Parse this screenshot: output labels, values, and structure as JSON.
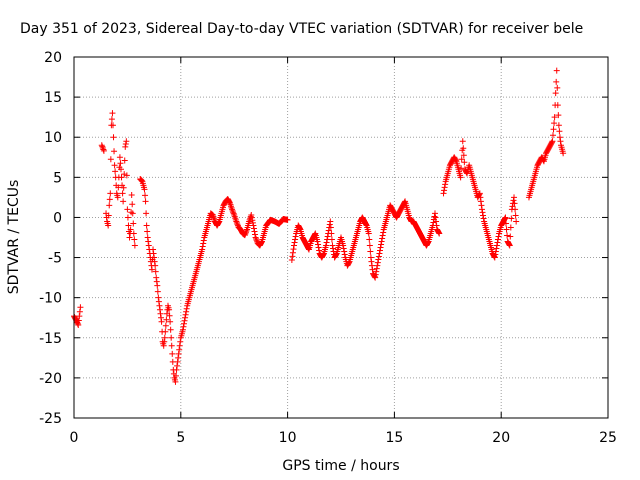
{
  "chart_data": {
    "type": "scatter",
    "title": "Day 351 of 2023, Sidereal Day-to-day VTEC variation (SDTVAR) for receiver bele",
    "xlabel": "GPS time / hours",
    "ylabel": "SDTVAR / TECUs",
    "xlim": [
      0,
      25
    ],
    "ylim": [
      -25,
      20
    ],
    "x_ticks": [
      "0",
      "5",
      "10",
      "15",
      "20",
      "25"
    ],
    "y_ticks": [
      "20",
      "15",
      "10",
      "5",
      "0",
      "-5",
      "-10",
      "-15",
      "-20",
      "-25"
    ],
    "grid": true,
    "marker": "+",
    "color": "#ff0000",
    "series": [
      {
        "name": "SDTVAR",
        "segments": [
          [
            [
              0.0,
              -12.3
            ],
            [
              0.1,
              -12.8
            ],
            [
              0.2,
              -13.4
            ],
            [
              0.3,
              -11.2
            ]
          ],
          [
            [
              1.3,
              9.0
            ],
            [
              1.4,
              8.3
            ]
          ],
          [
            [
              1.5,
              0.5
            ],
            [
              1.55,
              -0.5
            ],
            [
              1.6,
              -1.0
            ],
            [
              1.65,
              1.5
            ],
            [
              1.7,
              3.0
            ],
            [
              1.75,
              11.5
            ],
            [
              1.8,
              13.0
            ],
            [
              1.85,
              10.0
            ],
            [
              1.9,
              6.5
            ],
            [
              1.95,
              5.0
            ],
            [
              2.0,
              3.0
            ],
            [
              2.05,
              2.5
            ],
            [
              2.1,
              5.0
            ],
            [
              2.15,
              7.5
            ],
            [
              2.2,
              6.0
            ],
            [
              2.25,
              4.0
            ],
            [
              2.3,
              2.0
            ],
            [
              2.4,
              8.8
            ],
            [
              2.45,
              9.5
            ],
            [
              2.5,
              1.0
            ],
            [
              2.55,
              -1.0
            ],
            [
              2.6,
              -2.5
            ],
            [
              2.65,
              -1.5
            ],
            [
              2.7,
              2.8
            ],
            [
              2.75,
              0.5
            ],
            [
              2.8,
              -2.0
            ],
            [
              2.85,
              -3.5
            ]
          ],
          [
            [
              3.1,
              4.8
            ],
            [
              3.2,
              4.5
            ],
            [
              3.3,
              3.5
            ],
            [
              3.35,
              2.0
            ],
            [
              3.4,
              -1.0
            ],
            [
              3.45,
              -2.5
            ],
            [
              3.5,
              -3.5
            ],
            [
              3.55,
              -4.5
            ],
            [
              3.6,
              -5.5
            ],
            [
              3.65,
              -6.5
            ],
            [
              3.7,
              -4.0
            ],
            [
              3.75,
              -5.0
            ],
            [
              3.8,
              -6.0
            ],
            [
              3.85,
              -7.5
            ],
            [
              3.9,
              -8.5
            ],
            [
              3.95,
              -10.0
            ],
            [
              4.0,
              -11.0
            ],
            [
              4.05,
              -12.0
            ],
            [
              4.1,
              -13.0
            ],
            [
              4.15,
              -15.5
            ],
            [
              4.2,
              -16.0
            ],
            [
              4.25,
              -15.0
            ],
            [
              4.3,
              -13.5
            ],
            [
              4.35,
              -12.0
            ],
            [
              4.4,
              -11.0
            ],
            [
              4.45,
              -11.5
            ],
            [
              4.5,
              -13.0
            ],
            [
              4.55,
              -15.0
            ],
            [
              4.6,
              -17.0
            ],
            [
              4.65,
              -19.0
            ],
            [
              4.7,
              -20.0
            ],
            [
              4.75,
              -20.5
            ],
            [
              4.8,
              -19.0
            ],
            [
              4.85,
              -18.0
            ],
            [
              4.9,
              -17.0
            ],
            [
              4.95,
              -16.0
            ],
            [
              5.0,
              -15.0
            ],
            [
              5.1,
              -14.0
            ],
            [
              5.2,
              -12.5
            ],
            [
              5.3,
              -11.0
            ],
            [
              5.4,
              -10.0
            ],
            [
              5.5,
              -9.0
            ],
            [
              5.6,
              -8.0
            ],
            [
              5.7,
              -7.0
            ],
            [
              5.8,
              -6.0
            ],
            [
              5.9,
              -5.0
            ],
            [
              6.0,
              -4.0
            ],
            [
              6.1,
              -2.5
            ],
            [
              6.2,
              -1.5
            ],
            [
              6.3,
              -0.5
            ],
            [
              6.4,
              0.5
            ],
            [
              6.5,
              0.3
            ],
            [
              6.6,
              -0.5
            ],
            [
              6.7,
              -1.0
            ],
            [
              6.8,
              -0.5
            ],
            [
              6.9,
              0.5
            ],
            [
              7.0,
              1.5
            ],
            [
              7.1,
              2.0
            ],
            [
              7.2,
              2.3
            ],
            [
              7.3,
              1.8
            ],
            [
              7.4,
              1.0
            ],
            [
              7.5,
              0.3
            ],
            [
              7.6,
              -0.5
            ],
            [
              7.7,
              -1.2
            ],
            [
              7.8,
              -1.5
            ],
            [
              7.9,
              -2.0
            ],
            [
              8.0,
              -2.2
            ],
            [
              8.1,
              -1.5
            ],
            [
              8.2,
              -0.5
            ],
            [
              8.3,
              0.3
            ],
            [
              8.4,
              -1.0
            ],
            [
              8.5,
              -2.5
            ],
            [
              8.6,
              -3.2
            ],
            [
              8.7,
              -3.5
            ],
            [
              8.8,
              -3.0
            ],
            [
              8.9,
              -2.0
            ],
            [
              9.0,
              -1.0
            ],
            [
              9.2,
              -0.3
            ],
            [
              9.4,
              -0.5
            ],
            [
              9.6,
              -0.8
            ],
            [
              9.8,
              -0.2
            ],
            [
              10.0,
              -0.3
            ]
          ],
          [
            [
              10.2,
              -5.3
            ],
            [
              10.3,
              -3.5
            ],
            [
              10.4,
              -2.0
            ],
            [
              10.5,
              -1.0
            ],
            [
              10.6,
              -1.5
            ],
            [
              10.7,
              -2.5
            ],
            [
              10.8,
              -3.0
            ],
            [
              10.9,
              -3.5
            ],
            [
              11.0,
              -4.0
            ],
            [
              11.1,
              -3.0
            ],
            [
              11.2,
              -2.5
            ],
            [
              11.3,
              -2.0
            ],
            [
              11.4,
              -3.0
            ],
            [
              11.5,
              -4.5
            ],
            [
              11.6,
              -5.0
            ],
            [
              11.7,
              -4.5
            ],
            [
              11.8,
              -3.5
            ],
            [
              11.9,
              -2.0
            ],
            [
              12.0,
              -0.5
            ],
            [
              12.1,
              -3.5
            ],
            [
              12.2,
              -5.0
            ],
            [
              12.3,
              -4.5
            ],
            [
              12.4,
              -3.5
            ],
            [
              12.5,
              -2.5
            ],
            [
              12.6,
              -3.5
            ],
            [
              12.7,
              -5.0
            ],
            [
              12.8,
              -6.0
            ],
            [
              12.9,
              -5.5
            ],
            [
              13.0,
              -4.5
            ],
            [
              13.1,
              -3.5
            ],
            [
              13.2,
              -2.5
            ],
            [
              13.3,
              -1.5
            ],
            [
              13.4,
              -0.5
            ],
            [
              13.5,
              0.0
            ],
            [
              13.6,
              -0.5
            ],
            [
              13.7,
              -1.0
            ],
            [
              13.8,
              -2.0
            ],
            [
              13.9,
              -5.0
            ],
            [
              14.0,
              -7.0
            ],
            [
              14.1,
              -7.5
            ],
            [
              14.2,
              -6.0
            ],
            [
              14.3,
              -4.5
            ],
            [
              14.4,
              -3.0
            ],
            [
              14.5,
              -1.5
            ],
            [
              14.6,
              -0.5
            ],
            [
              14.7,
              0.5
            ],
            [
              14.8,
              1.5
            ],
            [
              14.9,
              1.0
            ],
            [
              15.0,
              0.5
            ],
            [
              15.1,
              0.0
            ],
            [
              15.2,
              0.5
            ],
            [
              15.3,
              1.0
            ],
            [
              15.4,
              1.5
            ],
            [
              15.5,
              2.0
            ],
            [
              15.6,
              1.0
            ],
            [
              15.7,
              0.0
            ],
            [
              15.8,
              -0.5
            ],
            [
              15.9,
              -0.5
            ],
            [
              16.0,
              -1.0
            ],
            [
              16.1,
              -1.5
            ],
            [
              16.2,
              -2.0
            ],
            [
              16.3,
              -2.5
            ],
            [
              16.4,
              -3.0
            ],
            [
              16.5,
              -3.5
            ],
            [
              16.6,
              -3.0
            ],
            [
              16.7,
              -2.0
            ],
            [
              16.8,
              -1.0
            ],
            [
              16.9,
              0.5
            ],
            [
              17.0,
              -1.5
            ],
            [
              17.1,
              -2.0
            ]
          ],
          [
            [
              17.3,
              3.0
            ],
            [
              17.4,
              4.5
            ],
            [
              17.5,
              5.5
            ],
            [
              17.6,
              6.5
            ],
            [
              17.7,
              7.0
            ],
            [
              17.8,
              7.5
            ],
            [
              17.9,
              7.0
            ],
            [
              18.0,
              6.0
            ],
            [
              18.1,
              5.0
            ],
            [
              18.2,
              9.5
            ],
            [
              18.3,
              6.0
            ],
            [
              18.4,
              5.5
            ],
            [
              18.5,
              6.5
            ],
            [
              18.6,
              5.5
            ],
            [
              18.7,
              4.5
            ],
            [
              18.8,
              3.5
            ],
            [
              18.9,
              2.5
            ],
            [
              19.0,
              3.0
            ],
            [
              19.1,
              1.0
            ],
            [
              19.2,
              -0.5
            ],
            [
              19.3,
              -1.5
            ],
            [
              19.4,
              -2.5
            ],
            [
              19.5,
              -3.5
            ],
            [
              19.6,
              -4.5
            ],
            [
              19.7,
              -5.0
            ],
            [
              19.8,
              -3.5
            ],
            [
              19.9,
              -2.0
            ],
            [
              20.0,
              -1.0
            ],
            [
              20.1,
              -0.5
            ],
            [
              20.2,
              0.0
            ],
            [
              20.3,
              -3.0
            ],
            [
              20.4,
              -3.5
            ],
            [
              20.5,
              1.0
            ],
            [
              20.6,
              2.5
            ],
            [
              20.7,
              -0.5
            ]
          ],
          [
            [
              21.3,
              2.5
            ],
            [
              21.4,
              3.5
            ],
            [
              21.5,
              4.5
            ],
            [
              21.6,
              5.5
            ],
            [
              21.7,
              6.5
            ],
            [
              21.8,
              7.0
            ],
            [
              21.9,
              7.5
            ],
            [
              22.0,
              7.0
            ],
            [
              22.1,
              8.0
            ],
            [
              22.2,
              8.5
            ],
            [
              22.3,
              9.0
            ],
            [
              22.4,
              9.5
            ],
            [
              22.45,
              11.0
            ],
            [
              22.5,
              12.5
            ],
            [
              22.55,
              15.5
            ],
            [
              22.6,
              18.3
            ],
            [
              22.65,
              14.0
            ],
            [
              22.7,
              11.5
            ],
            [
              22.75,
              10.0
            ],
            [
              22.8,
              9.0
            ],
            [
              22.85,
              8.5
            ],
            [
              22.9,
              8.0
            ]
          ]
        ]
      }
    ]
  }
}
